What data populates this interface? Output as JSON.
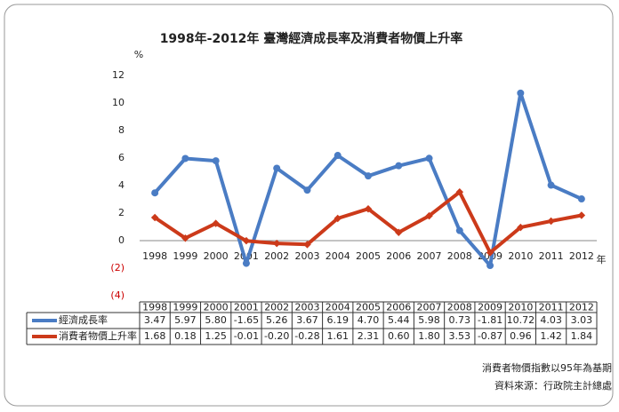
{
  "chart_data": {
    "type": "line",
    "title": "1998年-2012年 臺灣經濟成長率及消費者物價上升率",
    "y_label": "%",
    "x_label": "年",
    "categories": [
      "1998",
      "1999",
      "2000",
      "2001",
      "2002",
      "2003",
      "2004",
      "2005",
      "2006",
      "2007",
      "2008",
      "2009",
      "2010",
      "2011",
      "2012"
    ],
    "series": [
      {
        "name": "經濟成長率",
        "color": "#4a7cc4",
        "values": [
          3.47,
          5.97,
          5.8,
          -1.65,
          5.26,
          3.67,
          6.19,
          4.7,
          5.44,
          5.98,
          0.73,
          -1.81,
          10.72,
          4.03,
          3.03
        ],
        "value_labels": [
          "3.47",
          "5.97",
          "5.80",
          "-1.65",
          "5.26",
          "3.67",
          "6.19",
          "4.70",
          "5.44",
          "5.98",
          "0.73",
          "-1.81",
          "10.72",
          "4.03",
          "3.03"
        ]
      },
      {
        "name": "消費者物價上升率",
        "color": "#cc3a1a",
        "values": [
          1.68,
          0.18,
          1.25,
          -0.01,
          -0.2,
          -0.28,
          1.61,
          2.31,
          0.6,
          1.8,
          3.53,
          -0.87,
          0.96,
          1.42,
          1.84
        ],
        "value_labels": [
          "1.68",
          "0.18",
          "1.25",
          "-0.01",
          "-0.20",
          "-0.28",
          "1.61",
          "2.31",
          "0.60",
          "1.80",
          "3.53",
          "-0.87",
          "0.96",
          "1.42",
          "1.84"
        ]
      }
    ],
    "ylim": [
      -4,
      12
    ],
    "yticks": [
      {
        "value": -4,
        "label": "(4)"
      },
      {
        "value": -2,
        "label": "(2)"
      },
      0,
      2,
      4,
      6,
      8,
      10,
      12
    ],
    "negative_tick_color": "#cc0000",
    "notes": [
      "消費者物價指數以95年為基期",
      "資料來源：行政院主計總處"
    ]
  }
}
